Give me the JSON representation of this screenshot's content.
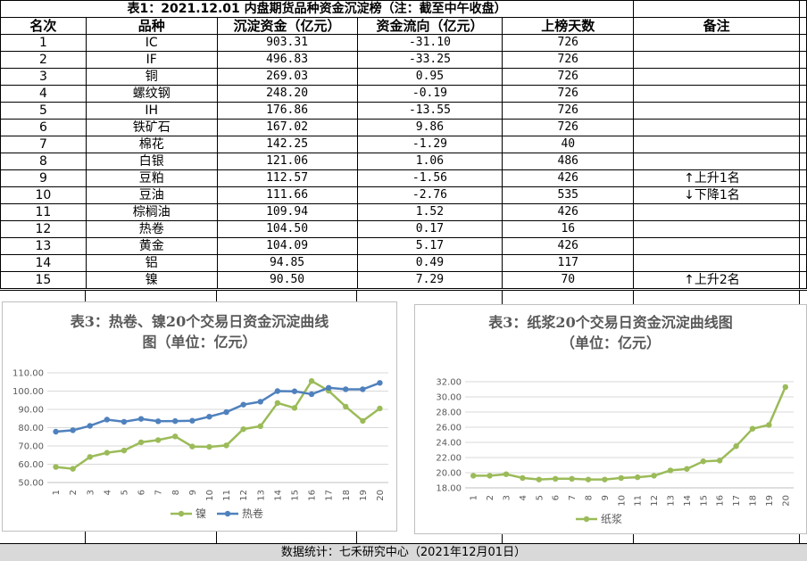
{
  "table": {
    "title": "表1：2021.12.01 内盘期货品种资金沉淀榜（注：截至中午收盘）",
    "headers": [
      "名次",
      "品种",
      "沉淀资金（亿元）",
      "资金流向（亿元）",
      "上榜天数",
      "备注"
    ],
    "rows": [
      [
        "1",
        "IC",
        "903.31",
        "-31.10",
        "726",
        ""
      ],
      [
        "2",
        "IF",
        "496.83",
        "-33.25",
        "726",
        ""
      ],
      [
        "3",
        "铜",
        "269.03",
        "0.95",
        "726",
        ""
      ],
      [
        "4",
        "螺纹钢",
        "248.20",
        "-0.19",
        "726",
        ""
      ],
      [
        "5",
        "IH",
        "176.86",
        "-13.55",
        "726",
        ""
      ],
      [
        "6",
        "铁矿石",
        "167.02",
        "9.86",
        "726",
        ""
      ],
      [
        "7",
        "棉花",
        "142.25",
        "-1.29",
        "40",
        ""
      ],
      [
        "8",
        "白银",
        "121.06",
        "1.06",
        "486",
        ""
      ],
      [
        "9",
        "豆粕",
        "112.57",
        "-1.56",
        "426",
        "↑上升1名"
      ],
      [
        "10",
        "豆油",
        "111.66",
        "-2.76",
        "535",
        "↓下降1名"
      ],
      [
        "11",
        "棕榈油",
        "109.94",
        "1.52",
        "426",
        ""
      ],
      [
        "12",
        "热卷",
        "104.50",
        "0.17",
        "16",
        ""
      ],
      [
        "13",
        "黄金",
        "104.09",
        "5.17",
        "426",
        ""
      ],
      [
        "14",
        "铝",
        "94.85",
        "0.49",
        "117",
        ""
      ],
      [
        "15",
        "镍",
        "90.50",
        "7.29",
        "70",
        "↑上升2名"
      ]
    ]
  },
  "footer": "数据统计：七禾研究中心（2021年12月01日）",
  "chart_data": [
    {
      "type": "line",
      "title": "表3：热卷、镍20个交易日资金沉淀曲线图（单位：亿元）",
      "title_lines": [
        "表3：热卷、镍20个交易日资金沉淀曲线",
        "图（单位：亿元）"
      ],
      "x": [
        "1",
        "2",
        "3",
        "4",
        "5",
        "6",
        "7",
        "8",
        "9",
        "10",
        "11",
        "12",
        "13",
        "14",
        "15",
        "16",
        "17",
        "18",
        "19",
        "20"
      ],
      "yticks": [
        "50.00",
        "60.00",
        "70.00",
        "80.00",
        "90.00",
        "100.00",
        "110.00"
      ],
      "ylim": [
        50,
        110
      ],
      "grid": true,
      "legend": "bottom",
      "series": [
        {
          "name": "镍",
          "color": "#9bbb59",
          "values": [
            58.5,
            57.5,
            64,
            66.3,
            67.5,
            72,
            73.2,
            75.2,
            69.7,
            69.5,
            70.3,
            79.2,
            80.8,
            93.5,
            90.8,
            105.5,
            100.2,
            91.5,
            83.7,
            90.5
          ]
        },
        {
          "name": "热卷",
          "color": "#4f81bd",
          "values": [
            77.8,
            78.6,
            81,
            84.4,
            83.2,
            84.8,
            83.5,
            83.6,
            83.8,
            86,
            88.5,
            92.6,
            94.2,
            100,
            99.9,
            98.3,
            101.8,
            101,
            101,
            104.5
          ]
        }
      ]
    },
    {
      "type": "line",
      "title": "表3：纸浆20个交易日资金沉淀曲线图（单位：亿元）",
      "title_lines": [
        "表3：纸浆20个交易日资金沉淀曲线图",
        "（单位：亿元）"
      ],
      "x": [
        "1",
        "2",
        "3",
        "4",
        "5",
        "6",
        "7",
        "8",
        "9",
        "10",
        "11",
        "12",
        "13",
        "14",
        "15",
        "16",
        "17",
        "18",
        "19",
        "20"
      ],
      "yticks": [
        "18.00",
        "20.00",
        "22.00",
        "24.00",
        "26.00",
        "28.00",
        "30.00",
        "32.00"
      ],
      "ylim": [
        18,
        32
      ],
      "grid": true,
      "legend": "bottom",
      "series": [
        {
          "name": "纸浆",
          "color": "#9bbb59",
          "values": [
            19.6,
            19.6,
            19.8,
            19.3,
            19.1,
            19.2,
            19.2,
            19.1,
            19.1,
            19.3,
            19.4,
            19.6,
            20.3,
            20.5,
            21.5,
            21.6,
            23.5,
            25.8,
            26.3,
            31.3
          ]
        }
      ]
    }
  ]
}
